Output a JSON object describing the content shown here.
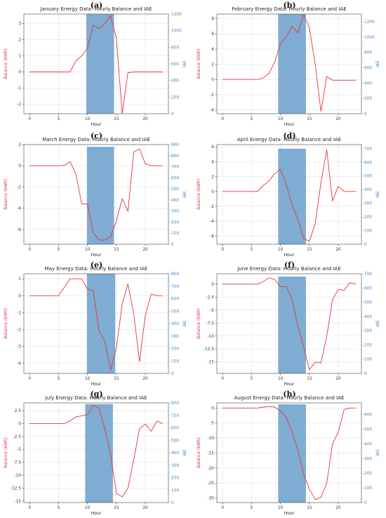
{
  "figure": {
    "panels": [
      {
        "letter": "(a)"
      },
      {
        "letter": "(b)"
      },
      {
        "letter": "(c)"
      },
      {
        "letter": "(d)"
      },
      {
        "letter": "(e)"
      },
      {
        "letter": "(f)"
      },
      {
        "letter": "(g)"
      },
      {
        "letter": "(h)"
      }
    ]
  },
  "colors": {
    "balance_line": "#e8343c",
    "iae_bar": "#77a8d1",
    "iae_axis": "#3b86c7",
    "balance_axis": "#d9343c",
    "grid": "#e3e3e3"
  },
  "chart_data": [
    {
      "type": "line",
      "title": "January Energy Data: Hourly Balance and IAE",
      "xlabel": "Hour",
      "ylabel": "Balance (kWh)",
      "y2label": "IAE",
      "xlim": [
        -1,
        24
      ],
      "ylim": [
        -2.6,
        3.6
      ],
      "y2lim": [
        0,
        1200
      ],
      "xticks": [
        0,
        5,
        10,
        15,
        20
      ],
      "yticks": [
        -2,
        -1,
        0,
        1,
        2,
        3
      ],
      "y2ticks": [
        0,
        200,
        400,
        600,
        800,
        1000,
        1200
      ],
      "x": [
        0,
        1,
        2,
        3,
        4,
        5,
        6,
        7,
        8,
        9,
        10,
        11,
        12,
        13,
        14,
        15,
        16,
        17,
        18,
        19,
        20,
        21,
        22,
        23
      ],
      "series": [
        {
          "values": [
            0,
            0,
            0,
            0,
            0,
            0,
            0,
            0,
            0.7,
            1.0,
            1.5,
            2.9,
            2.7,
            3.0,
            3.5,
            2.1,
            -2.6,
            -0.05,
            0,
            0,
            0,
            0,
            0,
            0
          ]
        }
      ],
      "bars": [
        {
          "x_start": 9.8,
          "x_end": 14.6,
          "value": 1200
        }
      ]
    },
    {
      "type": "line",
      "title": "February Energy Data: Hourly Balance and IAE",
      "xlabel": "Hour",
      "ylabel": "Balance (kWh)",
      "y2label": "IAE",
      "xlim": [
        -1,
        24
      ],
      "ylim": [
        -4.5,
        8.6
      ],
      "y2lim": [
        0,
        1300
      ],
      "xticks": [
        0,
        5,
        10,
        15,
        20
      ],
      "yticks": [
        -4,
        -2,
        0,
        2,
        4,
        6,
        8
      ],
      "y2ticks": [
        0,
        200,
        400,
        600,
        800,
        1000,
        1200
      ],
      "x": [
        0,
        1,
        2,
        3,
        4,
        5,
        6,
        7,
        8,
        9,
        10,
        11,
        12,
        13,
        14,
        15,
        16,
        17,
        18,
        19,
        20,
        21,
        22,
        23
      ],
      "series": [
        {
          "values": [
            0,
            0,
            0,
            0,
            0,
            0,
            0,
            0.2,
            0.8,
            2.3,
            4.7,
            5.6,
            7.0,
            6.1,
            8.5,
            6.8,
            2.0,
            -4.2,
            0.4,
            -0.1,
            -0.1,
            -0.1,
            -0.1,
            -0.1
          ]
        }
      ],
      "bars": [
        {
          "x_start": 9.6,
          "x_end": 14.4,
          "value": 1300
        }
      ]
    },
    {
      "type": "line",
      "title": "March Energy Data: Hourly Balance and IAE",
      "xlabel": "Hour",
      "ylabel": "Balance (kWh)",
      "y2label": "IAE",
      "xlim": [
        -1,
        24
      ],
      "ylim": [
        -7.4,
        2.0
      ],
      "y2lim": [
        0,
        900
      ],
      "xticks": [
        0,
        5,
        10,
        15,
        20
      ],
      "yticks": [
        -6,
        -4,
        -2,
        0,
        2
      ],
      "y2ticks": [
        0,
        100,
        200,
        300,
        400,
        500,
        600,
        700,
        800,
        900
      ],
      "x": [
        0,
        1,
        2,
        3,
        4,
        5,
        6,
        7,
        8,
        9,
        10,
        11,
        12,
        13,
        14,
        15,
        16,
        17,
        18,
        19,
        20,
        21,
        22,
        23
      ],
      "series": [
        {
          "values": [
            0,
            0,
            0,
            0,
            0,
            0,
            0.05,
            0.4,
            -0.8,
            -3.6,
            -3.6,
            -6.3,
            -7.0,
            -7.0,
            -6.7,
            -5.2,
            -3.1,
            -4.3,
            1.3,
            1.6,
            0.2,
            0,
            0,
            0
          ]
        }
      ],
      "bars": [
        {
          "x_start": 9.9,
          "x_end": 14.6,
          "value": 880
        }
      ]
    },
    {
      "type": "line",
      "title": "April Energy Data: Hourly Balance and IAE",
      "xlabel": "Hour",
      "ylabel": "Balance (kWh)",
      "y2label": "IAE",
      "xlim": [
        -1,
        24
      ],
      "ylim": [
        -7.1,
        6.3
      ],
      "y2lim": [
        0,
        730
      ],
      "xticks": [
        0,
        5,
        10,
        15,
        20
      ],
      "yticks": [
        -6,
        -4,
        -2,
        0,
        2,
        4,
        6
      ],
      "y2ticks": [
        0,
        100,
        200,
        300,
        400,
        500,
        600,
        700
      ],
      "x": [
        0,
        1,
        2,
        3,
        4,
        5,
        6,
        7,
        8,
        9,
        10,
        11,
        12,
        13,
        14,
        15,
        16,
        17,
        18,
        19,
        20,
        21,
        22,
        23
      ],
      "series": [
        {
          "values": [
            0,
            0,
            0,
            0,
            0,
            0,
            0,
            0.8,
            1.4,
            2.4,
            3.0,
            0.9,
            -1.8,
            -3.8,
            -6.3,
            -6.7,
            -4.3,
            1.2,
            5.6,
            -1.3,
            0.7,
            0,
            0,
            0
          ]
        }
      ],
      "bars": [
        {
          "x_start": 9.6,
          "x_end": 14.4,
          "value": 700
        }
      ]
    },
    {
      "type": "line",
      "title": "May Energy Data: Hourly Balance and IAE",
      "xlabel": "Hour",
      "ylabel": "Balance (kWh)",
      "y2label": "IAE",
      "xlim": [
        -1,
        24
      ],
      "ylim": [
        -4.6,
        1.3
      ],
      "y2lim": [
        0,
        800
      ],
      "xticks": [
        0,
        5,
        10,
        15,
        20
      ],
      "yticks": [
        -4,
        -3,
        -2,
        -1,
        0,
        1
      ],
      "y2ticks": [
        0,
        100,
        200,
        300,
        400,
        500,
        600,
        700,
        800
      ],
      "x": [
        0,
        1,
        2,
        3,
        4,
        5,
        6,
        7,
        8,
        9,
        10,
        11,
        12,
        13,
        14,
        15,
        16,
        17,
        18,
        19,
        20,
        21,
        22,
        23
      ],
      "series": [
        {
          "values": [
            0,
            0,
            0,
            0,
            0,
            0,
            0.5,
            1.0,
            1.0,
            1.0,
            0.4,
            0.3,
            -2.1,
            -2.7,
            -4.4,
            -3.1,
            -0.5,
            0.7,
            -1.1,
            -3.9,
            -1.2,
            0.1,
            0,
            0
          ]
        }
      ],
      "bars": [
        {
          "x_start": 9.9,
          "x_end": 14.8,
          "value": 800
        }
      ]
    },
    {
      "type": "line",
      "title": "June Energy Data: Hourly Balance and IAE",
      "xlabel": "Hour",
      "ylabel": "Balance (kWh)",
      "y2label": "IAE",
      "xlim": [
        -1,
        24
      ],
      "ylim": [
        -17.2,
        2.0
      ],
      "y2lim": [
        0,
        700
      ],
      "xticks": [
        0,
        5,
        10,
        15,
        20
      ],
      "yticks": [
        -15.0,
        -12.5,
        -10.0,
        -7.5,
        -5.0,
        -2.5,
        0.0
      ],
      "y2ticks": [
        0,
        100,
        200,
        300,
        400,
        500,
        600,
        700
      ],
      "x": [
        0,
        1,
        2,
        3,
        4,
        5,
        6,
        7,
        8,
        9,
        10,
        11,
        12,
        13,
        14,
        15,
        16,
        17,
        18,
        19,
        20,
        21,
        22,
        23
      ],
      "series": [
        {
          "values": [
            0,
            0,
            0,
            0,
            0,
            0,
            0,
            0.5,
            1.2,
            0.9,
            -0.5,
            -0.5,
            -3.0,
            -8.0,
            -12.0,
            -16.5,
            -15.0,
            -15.2,
            -10.0,
            -3.0,
            -1.0,
            -1.2,
            0.3,
            0
          ]
        }
      ],
      "bars": [
        {
          "x_start": 9.6,
          "x_end": 14.4,
          "value": 680
        }
      ]
    },
    {
      "type": "line",
      "title": "July Energy Data: Hourly Balance and IAE",
      "xlabel": "Hour",
      "ylabel": "Balance (kWh)",
      "y2label": "IAE",
      "xlim": [
        -1,
        24
      ],
      "ylim": [
        -15.3,
        4.0
      ],
      "y2lim": [
        0,
        800
      ],
      "xticks": [
        0,
        5,
        10,
        15,
        20
      ],
      "yticks": [
        -15.0,
        -12.5,
        -10.0,
        -7.5,
        -5.0,
        -2.5,
        0.0,
        2.5
      ],
      "y2ticks": [
        0,
        100,
        200,
        300,
        400,
        500,
        600,
        700,
        800
      ],
      "x": [
        0,
        1,
        2,
        3,
        4,
        5,
        6,
        7,
        8,
        9,
        10,
        11,
        12,
        13,
        14,
        15,
        16,
        17,
        18,
        19,
        20,
        21,
        22,
        23
      ],
      "series": [
        {
          "values": [
            0,
            0,
            0,
            0,
            0,
            0,
            0,
            0.5,
            1.3,
            1.5,
            1.7,
            3.5,
            3.0,
            -1.0,
            -6.0,
            -13.5,
            -14.2,
            -12.5,
            -7.0,
            -1.0,
            -0.1,
            -1.5,
            0.5,
            0
          ]
        }
      ],
      "bars": [
        {
          "x_start": 9.6,
          "x_end": 14.4,
          "value": 790
        }
      ]
    },
    {
      "type": "line",
      "title": "August Energy Data: Hourly Balance and IAE",
      "xlabel": "Hour",
      "ylabel": "Balance (kWh)",
      "y2label": "IAE",
      "xlim": [
        -1,
        24
      ],
      "ylim": [
        -31.5,
        1.7
      ],
      "y2lim": [
        0,
        680
      ],
      "xticks": [
        0,
        5,
        10,
        15,
        20
      ],
      "yticks": [
        -30,
        -25,
        -20,
        -15,
        -10,
        -5,
        0
      ],
      "y2ticks": [
        0,
        100,
        200,
        300,
        400,
        500,
        600
      ],
      "x": [
        0,
        1,
        2,
        3,
        4,
        5,
        6,
        7,
        8,
        9,
        10,
        11,
        12,
        13,
        14,
        15,
        16,
        17,
        18,
        19,
        20,
        21,
        22,
        23
      ],
      "series": [
        {
          "values": [
            0,
            0,
            0,
            0,
            0,
            0,
            0,
            0.3,
            0.5,
            0.3,
            -1.0,
            -3.0,
            -8.0,
            -14.0,
            -22.0,
            -27.0,
            -30.5,
            -29.8,
            -25.0,
            -12.0,
            -8.0,
            -0.5,
            0,
            0
          ]
        }
      ],
      "bars": [
        {
          "x_start": 9.6,
          "x_end": 14.4,
          "value": 670
        }
      ]
    }
  ]
}
